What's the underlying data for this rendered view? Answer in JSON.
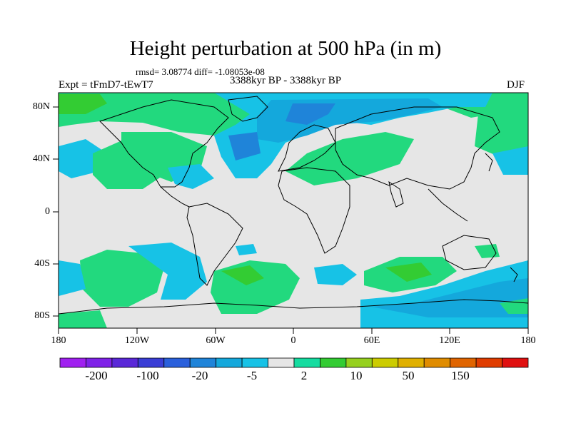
{
  "title": "Height perturbation at 500 hPa (in m)",
  "stats": "rmsd= 3.08774 diff= -1.08053e-08",
  "experiment": "Expt = tFmD7-tEwT7",
  "period": "3388kyr BP - 3388kyr BP",
  "season": "DJF",
  "lat_labels": [
    "80N",
    "40N",
    "0",
    "40S",
    "80S"
  ],
  "lon_labels": [
    "180",
    "120W",
    "60W",
    "0",
    "60E",
    "120E",
    "180"
  ],
  "colorbar": {
    "colors": [
      "#a020f0",
      "#7f22e8",
      "#5a28d8",
      "#3a3ed6",
      "#2a60dc",
      "#1f84d9",
      "#14a8dc",
      "#17c2e6",
      "#e6e6e6",
      "#15dca0",
      "#33cc33",
      "#96d01e",
      "#cccc00",
      "#e0b000",
      "#e08c00",
      "#e06400",
      "#e03c00",
      "#e01010"
    ],
    "labels": [
      "-200",
      "-100",
      "-20",
      "-5",
      "2",
      "10",
      "50",
      "150"
    ]
  },
  "colors": {
    "background_field": "#e6e6e6",
    "green": "#22d97e",
    "lightblue": "#17c2e6",
    "blue": "#14a8dc",
    "deepblue": "#1f84d9",
    "yellowgreen": "#33cc33",
    "coast": "#000000"
  }
}
